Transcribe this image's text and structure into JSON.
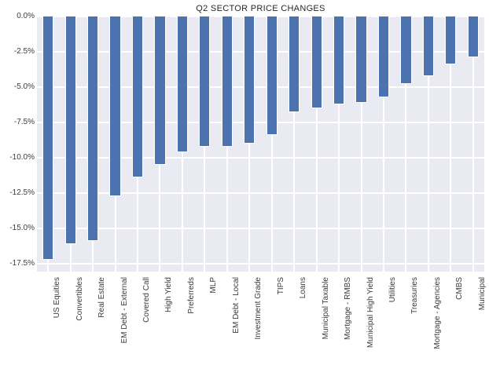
{
  "chart_data": {
    "type": "bar",
    "title": "Q2 SECTOR PRICE CHANGES",
    "xlabel": "",
    "ylabel": "",
    "categories": [
      "US Equities",
      "Convertibles",
      "Real Estate",
      "EM Debt - External",
      "Covered Call",
      "High Yield",
      "Preferreds",
      "MLP",
      "EM Debt - Local",
      "Investment Grade",
      "TIPS",
      "Loans",
      "Municipal Taxable",
      "Mortgage - RMBS",
      "Municipal High Yield",
      "Utilities",
      "Treasuries",
      "Mortgage - Agencies",
      "CMBS",
      "Municipal"
    ],
    "values": [
      -17.2,
      -16.1,
      -15.9,
      -12.7,
      -11.4,
      -10.5,
      -9.6,
      -9.2,
      -9.2,
      -9.0,
      -8.4,
      -6.8,
      -6.5,
      -6.2,
      -6.1,
      -5.7,
      -4.8,
      -4.2,
      -3.4,
      -2.9
    ],
    "unit": "%",
    "y_ticks": [
      0,
      -2.5,
      -5.0,
      -7.5,
      -10.0,
      -12.5,
      -15.0,
      -17.5
    ],
    "y_tick_labels": [
      "0.0%",
      "-2.5%",
      "-5.0%",
      "-7.5%",
      "-10.0%",
      "-12.5%",
      "-15.0%",
      "-17.5%"
    ],
    "ylim": [
      -18.05,
      0
    ],
    "grid": true,
    "legend": false,
    "colors": {
      "bar": "#4c72b0",
      "plot_background": "#eaeaf2",
      "gridline": "#ffffff",
      "tick_text": "#3b3b3b",
      "title_text": "#262626",
      "figure_background": "#ffffff"
    }
  }
}
